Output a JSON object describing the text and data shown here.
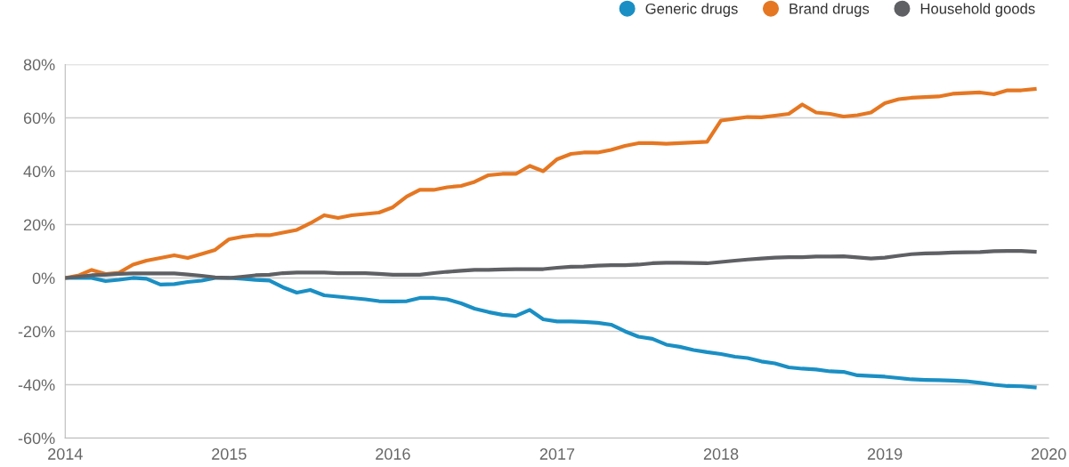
{
  "chart_data": {
    "type": "line",
    "x": [
      "2014-01",
      "2014-02",
      "2014-03",
      "2014-04",
      "2014-05",
      "2014-06",
      "2014-07",
      "2014-08",
      "2014-09",
      "2014-10",
      "2014-11",
      "2014-12",
      "2015-01",
      "2015-02",
      "2015-03",
      "2015-04",
      "2015-05",
      "2015-06",
      "2015-07",
      "2015-08",
      "2015-09",
      "2015-10",
      "2015-11",
      "2015-12",
      "2016-01",
      "2016-02",
      "2016-03",
      "2016-04",
      "2016-05",
      "2016-06",
      "2016-07",
      "2016-08",
      "2016-09",
      "2016-10",
      "2016-11",
      "2016-12",
      "2017-01",
      "2017-02",
      "2017-03",
      "2017-04",
      "2017-05",
      "2017-06",
      "2017-07",
      "2017-08",
      "2017-09",
      "2017-10",
      "2017-11",
      "2017-12",
      "2018-01",
      "2018-02",
      "2018-03",
      "2018-04",
      "2018-05",
      "2018-06",
      "2018-07",
      "2018-08",
      "2018-09",
      "2018-10",
      "2018-11",
      "2018-12",
      "2019-01",
      "2019-02",
      "2019-03",
      "2019-04",
      "2019-05",
      "2019-06",
      "2019-07",
      "2019-08",
      "2019-09",
      "2019-10",
      "2019-11",
      "2019-12"
    ],
    "series": [
      {
        "name": "Generic drugs",
        "color": "#1a8fc4",
        "values": [
          0,
          0,
          0,
          -1.2,
          -0.7,
          0,
          -0.3,
          -2.5,
          -2.3,
          -1.5,
          -1,
          0,
          0,
          -0.3,
          -0.7,
          -1,
          -3.5,
          -5.5,
          -4.5,
          -6.5,
          -7,
          -7.5,
          -8,
          -8.7,
          -8.8,
          -8.7,
          -7.5,
          -7.5,
          -8,
          -9.5,
          -11.5,
          -12.8,
          -13.8,
          -14.2,
          -12,
          -15.5,
          -16.3,
          -16.3,
          -16.5,
          -16.8,
          -17.5,
          -20,
          -22,
          -22.8,
          -25,
          -25.8,
          -27,
          -27.8,
          -28.5,
          -29.5,
          -30,
          -31.3,
          -32,
          -33.5,
          -34,
          -34.3,
          -35,
          -35.2,
          -36.5,
          -36.7,
          -37,
          -37.5,
          -38,
          -38.2,
          -38.3,
          -38.5,
          -38.7,
          -39.3,
          -40,
          -40.5,
          -40.6,
          -41
        ]
      },
      {
        "name": "Brand drugs",
        "color": "#e57722",
        "values": [
          0,
          1,
          3,
          1.5,
          2,
          5,
          6.5,
          7.5,
          8.5,
          7.5,
          9,
          10.5,
          14.5,
          15.5,
          16,
          16,
          17,
          18,
          20.5,
          23.5,
          22.5,
          23.5,
          24,
          24.5,
          26.5,
          30.5,
          33,
          33,
          34,
          34.5,
          36,
          38.5,
          39,
          39,
          42,
          40,
          44.5,
          46.5,
          47,
          47,
          48,
          49.5,
          50.5,
          50.5,
          50.3,
          50.5,
          50.8,
          51,
          59,
          59.7,
          60.3,
          60.2,
          60.8,
          61.5,
          65,
          62,
          61.5,
          60.5,
          61,
          62,
          65.5,
          67,
          67.5,
          67.8,
          68,
          69,
          69.3,
          69.5,
          68.8,
          70.3,
          70.3,
          70.8
        ]
      },
      {
        "name": "Household goods",
        "color": "#5f6064",
        "values": [
          0,
          0.5,
          1,
          1.2,
          1.5,
          1.7,
          1.7,
          1.7,
          1.7,
          1.3,
          0.8,
          0.2,
          0,
          0.5,
          1,
          1.2,
          1.8,
          2,
          2,
          2,
          1.8,
          1.8,
          1.8,
          1.5,
          1.2,
          1.2,
          1.2,
          1.8,
          2.3,
          2.7,
          3,
          3,
          3.2,
          3.3,
          3.3,
          3.3,
          3.8,
          4.2,
          4.3,
          4.6,
          4.8,
          4.8,
          5,
          5.5,
          5.7,
          5.7,
          5.6,
          5.5,
          6,
          6.5,
          6.9,
          7.3,
          7.6,
          7.8,
          7.8,
          8,
          8,
          8.1,
          7.7,
          7.3,
          7.6,
          8.3,
          8.9,
          9.2,
          9.3,
          9.5,
          9.6,
          9.7,
          10,
          10.1,
          10.1,
          9.8
        ]
      }
    ],
    "xlim": [
      "2014",
      "2020"
    ],
    "xticks": [
      {
        "value": "2014",
        "label": "2014"
      },
      {
        "value": "2015",
        "label": "2015"
      },
      {
        "value": "2016",
        "label": "2016"
      },
      {
        "value": "2017",
        "label": "2017"
      },
      {
        "value": "2018",
        "label": "2018"
      },
      {
        "value": "2019",
        "label": "2019"
      },
      {
        "value": "2020",
        "label": "2020"
      }
    ],
    "ylim": [
      -60,
      80
    ],
    "yticks": [
      {
        "value": -60,
        "label": "-60%"
      },
      {
        "value": -40,
        "label": "-40%"
      },
      {
        "value": -20,
        "label": "-20%"
      },
      {
        "value": 0,
        "label": "0%"
      },
      {
        "value": 20,
        "label": "20%"
      },
      {
        "value": 40,
        "label": "40%"
      },
      {
        "value": 60,
        "label": "60%"
      },
      {
        "value": 80,
        "label": "80%"
      }
    ],
    "grid": "y",
    "legend": "top right",
    "line_style": "solid"
  }
}
